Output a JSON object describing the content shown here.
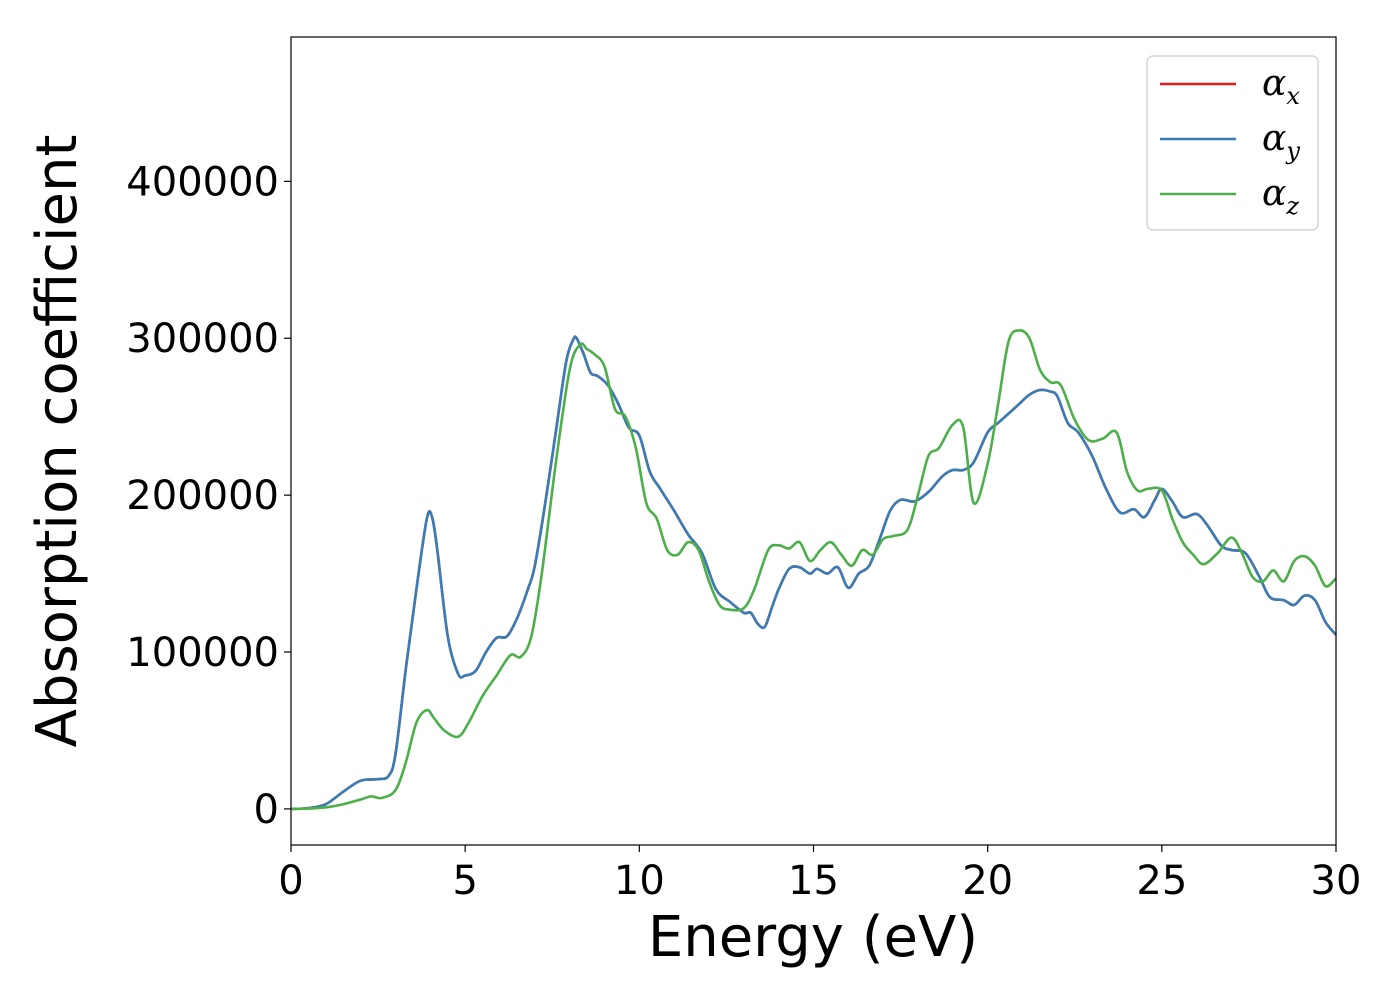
{
  "chart_data": {
    "type": "line",
    "title": "",
    "xlabel": "Energy (eV)",
    "ylabel": "Absorption coefficient",
    "xlim": [
      0,
      30
    ],
    "ylim": [
      -23000,
      492000
    ],
    "xticks": [
      0,
      5,
      10,
      15,
      20,
      25,
      30
    ],
    "yticks": [
      0,
      100000,
      200000,
      300000,
      400000
    ],
    "grid": false,
    "legend_position": "top-right",
    "series": [
      {
        "name": "αx",
        "legend_base": "α",
        "legend_sub": "x",
        "color": "#e41a1c",
        "x": [
          0,
          0.5,
          1,
          1.5,
          2,
          2.5,
          2.8,
          3,
          3.3,
          3.6,
          3.9,
          4.05,
          4.2,
          4.5,
          4.8,
          5,
          5.3,
          5.6,
          5.9,
          6.2,
          6.5,
          6.8,
          7,
          7.3,
          7.6,
          7.9,
          8.1,
          8.2,
          8.4,
          8.6,
          8.8,
          9.1,
          9.4,
          9.7,
          10,
          10.3,
          10.6,
          11,
          11.4,
          11.8,
          12.2,
          12.6,
          13,
          13.2,
          13.4,
          13.6,
          13.8,
          14,
          14.3,
          14.6,
          14.9,
          15.1,
          15.4,
          15.7,
          16,
          16.3,
          16.6,
          16.9,
          17.2,
          17.5,
          17.9,
          18.3,
          18.7,
          19,
          19.3,
          19.6,
          20,
          20.3,
          20.6,
          20.9,
          21.2,
          21.5,
          21.8,
          22,
          22.3,
          22.6,
          23,
          23.4,
          23.8,
          24.2,
          24.5,
          24.8,
          25,
          25.3,
          25.6,
          26,
          26.3,
          26.7,
          27,
          27.4,
          27.8,
          28.1,
          28.5,
          28.8,
          29.1,
          29.4,
          29.7,
          30
        ],
        "values": [
          0,
          500,
          3000,
          11000,
          18000,
          19000,
          21000,
          35000,
          90000,
          140000,
          185000,
          186000,
          165000,
          110000,
          86000,
          85000,
          88000,
          100000,
          109000,
          110000,
          122000,
          140000,
          155000,
          195000,
          240000,
          285000,
          299000,
          300000,
          290000,
          278000,
          276000,
          270000,
          258000,
          243000,
          238000,
          215000,
          204000,
          190000,
          175000,
          163000,
          140000,
          132000,
          125000,
          125000,
          118000,
          116000,
          128000,
          140000,
          153000,
          154000,
          150000,
          153000,
          150000,
          154000,
          141000,
          150000,
          155000,
          172000,
          190000,
          197000,
          196000,
          202000,
          212000,
          216000,
          216000,
          221000,
          240000,
          246000,
          252000,
          258000,
          264000,
          267000,
          266000,
          263000,
          246000,
          240000,
          225000,
          204000,
          189000,
          191000,
          186000,
          197000,
          204000,
          196000,
          186000,
          188000,
          181000,
          168000,
          165000,
          163000,
          148000,
          135000,
          133000,
          130000,
          136000,
          133000,
          119000,
          111000
        ]
      },
      {
        "name": "αy",
        "legend_base": "α",
        "legend_sub": "y",
        "color": "#377eb8",
        "x": [
          0,
          0.5,
          1,
          1.5,
          2,
          2.5,
          2.8,
          3,
          3.3,
          3.6,
          3.9,
          4.05,
          4.2,
          4.5,
          4.8,
          5,
          5.3,
          5.6,
          5.9,
          6.2,
          6.5,
          6.8,
          7,
          7.3,
          7.6,
          7.9,
          8.1,
          8.2,
          8.4,
          8.6,
          8.8,
          9.1,
          9.4,
          9.7,
          10,
          10.3,
          10.6,
          11,
          11.4,
          11.8,
          12.2,
          12.6,
          13,
          13.2,
          13.4,
          13.6,
          13.8,
          14,
          14.3,
          14.6,
          14.9,
          15.1,
          15.4,
          15.7,
          16,
          16.3,
          16.6,
          16.9,
          17.2,
          17.5,
          17.9,
          18.3,
          18.7,
          19,
          19.3,
          19.6,
          20,
          20.3,
          20.6,
          20.9,
          21.2,
          21.5,
          21.8,
          22,
          22.3,
          22.6,
          23,
          23.4,
          23.8,
          24.2,
          24.5,
          24.8,
          25,
          25.3,
          25.6,
          26,
          26.3,
          26.7,
          27,
          27.4,
          27.8,
          28.1,
          28.5,
          28.8,
          29.1,
          29.4,
          29.7,
          30
        ],
        "values": [
          0,
          500,
          3000,
          11000,
          18000,
          19000,
          21000,
          35000,
          90000,
          140000,
          185000,
          186000,
          165000,
          110000,
          86000,
          85000,
          88000,
          100000,
          109000,
          110000,
          122000,
          140000,
          155000,
          195000,
          240000,
          285000,
          299000,
          300000,
          290000,
          278000,
          276000,
          270000,
          258000,
          243000,
          238000,
          215000,
          204000,
          190000,
          175000,
          163000,
          140000,
          132000,
          125000,
          125000,
          118000,
          116000,
          128000,
          140000,
          153000,
          154000,
          150000,
          153000,
          150000,
          154000,
          141000,
          150000,
          155000,
          172000,
          190000,
          197000,
          196000,
          202000,
          212000,
          216000,
          216000,
          221000,
          240000,
          246000,
          252000,
          258000,
          264000,
          267000,
          266000,
          263000,
          246000,
          240000,
          225000,
          204000,
          189000,
          191000,
          186000,
          197000,
          204000,
          196000,
          186000,
          188000,
          181000,
          168000,
          165000,
          163000,
          148000,
          135000,
          133000,
          130000,
          136000,
          133000,
          119000,
          111000
        ]
      },
      {
        "name": "αz",
        "legend_base": "α",
        "legend_sub": "z",
        "color": "#4daf4a",
        "x": [
          0,
          0.5,
          1,
          1.5,
          2,
          2.3,
          2.6,
          3,
          3.3,
          3.6,
          3.9,
          4.1,
          4.4,
          4.8,
          5.1,
          5.5,
          5.9,
          6.3,
          6.6,
          6.9,
          7.2,
          7.6,
          8,
          8.3,
          8.5,
          8.7,
          9,
          9.3,
          9.6,
          9.9,
          10.2,
          10.5,
          10.8,
          11.1,
          11.4,
          11.7,
          12,
          12.3,
          12.6,
          13,
          13.3,
          13.7,
          14,
          14.3,
          14.6,
          14.9,
          15.2,
          15.5,
          15.8,
          16.1,
          16.4,
          16.7,
          17,
          17.3,
          17.7,
          18,
          18.3,
          18.6,
          19,
          19.3,
          19.6,
          20,
          20.3,
          20.6,
          20.9,
          21.2,
          21.5,
          21.8,
          22.1,
          22.5,
          22.9,
          23.3,
          23.7,
          24,
          24.3,
          24.6,
          25,
          25.3,
          25.6,
          25.9,
          26.2,
          26.6,
          27,
          27.3,
          27.6,
          27.9,
          28.2,
          28.5,
          28.8,
          29.1,
          29.4,
          29.7,
          30
        ],
        "values": [
          0,
          200,
          1000,
          3000,
          6000,
          8000,
          7000,
          12000,
          30000,
          55000,
          63000,
          58000,
          50000,
          46000,
          55000,
          72000,
          85000,
          98000,
          97000,
          110000,
          150000,
          220000,
          280000,
          296000,
          293000,
          290000,
          282000,
          255000,
          250000,
          230000,
          195000,
          185000,
          165000,
          162000,
          170000,
          165000,
          145000,
          130000,
          127000,
          128000,
          140000,
          165000,
          168000,
          166000,
          170000,
          158000,
          165000,
          170000,
          162000,
          155000,
          165000,
          162000,
          172000,
          174000,
          178000,
          200000,
          225000,
          230000,
          245000,
          243000,
          195000,
          220000,
          258000,
          298000,
          305000,
          300000,
          280000,
          272000,
          270000,
          248000,
          235000,
          236000,
          240000,
          215000,
          203000,
          204000,
          203000,
          185000,
          170000,
          162000,
          156000,
          163000,
          173000,
          163000,
          148000,
          145000,
          152000,
          145000,
          158000,
          161000,
          155000,
          142000,
          147000
        ]
      }
    ]
  }
}
